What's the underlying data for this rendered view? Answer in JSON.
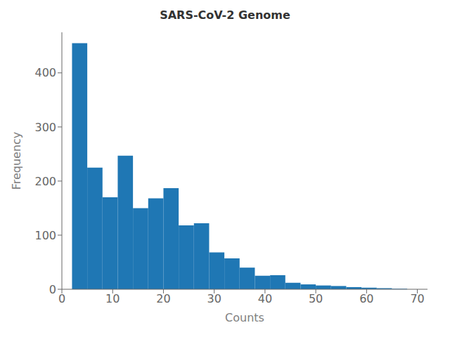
{
  "chart_data": {
    "type": "histogram",
    "title": "SARS-CoV-2 Genome",
    "xlabel": "Counts",
    "ylabel": "Frequency",
    "color": "#1f77b4",
    "bins": [
      2,
      5,
      8,
      11,
      14,
      17,
      20,
      23,
      26,
      29,
      32,
      35,
      38,
      41,
      44,
      47,
      50,
      53,
      56,
      59,
      62,
      65,
      68,
      71
    ],
    "values": [
      455,
      225,
      170,
      247,
      150,
      168,
      187,
      118,
      122,
      68,
      57,
      40,
      25,
      26,
      12,
      9,
      7,
      6,
      4,
      3,
      2,
      1,
      0
    ],
    "xlim": [
      0,
      72
    ],
    "ylim": [
      0,
      475
    ],
    "xticks": [
      0,
      10,
      20,
      30,
      40,
      50,
      60,
      70
    ],
    "yticks": [
      0,
      100,
      200,
      300,
      400
    ],
    "grid": false
  }
}
